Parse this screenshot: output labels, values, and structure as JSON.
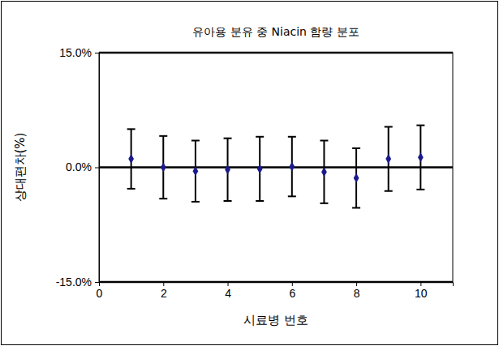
{
  "chart_data": {
    "type": "scatter",
    "title": "유아용 분유 중 Niacin 함량 분포",
    "x_label": "시료병 번호",
    "y_label": "상대편차(%)",
    "x": [
      1,
      2,
      3,
      4,
      5,
      6,
      7,
      8,
      9,
      10
    ],
    "values": [
      1.1,
      0.0,
      -0.5,
      -0.3,
      -0.2,
      0.1,
      -0.6,
      -1.4,
      1.1,
      1.3
    ],
    "errors": [
      3.9,
      4.1,
      4.0,
      4.1,
      4.2,
      3.9,
      4.1,
      3.9,
      4.2,
      4.2
    ],
    "color": "#1a1a8c",
    "marker": "diamond",
    "xlim": [
      0,
      11
    ],
    "xticks": [
      0,
      2,
      4,
      6,
      8,
      10
    ],
    "ylim": [
      -15,
      15
    ],
    "yticks": [
      {
        "value": -15,
        "label": "-15.0%"
      },
      {
        "value": 0,
        "label": "0.0%"
      },
      {
        "value": 15,
        "label": "15.0%"
      }
    ],
    "grid": true
  }
}
